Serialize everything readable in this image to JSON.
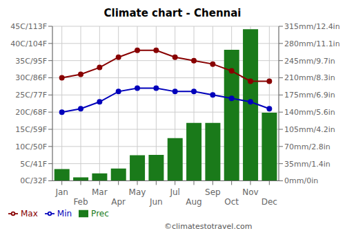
{
  "chart_data": {
    "type": "bar",
    "title": "Climate chart - Chennai",
    "categories": [
      "Jan",
      "Feb",
      "Mar",
      "Apr",
      "May",
      "Jun",
      "Jul",
      "Aug",
      "Sep",
      "Oct",
      "Nov",
      "Dec"
    ],
    "series": [
      {
        "name": "Prec",
        "type": "bar",
        "color": "#1a7a1a",
        "axis": "y2",
        "values": [
          24,
          7,
          15,
          25,
          52,
          53,
          87,
          118,
          118,
          267,
          309,
          139
        ]
      },
      {
        "name": "Min",
        "type": "line",
        "color": "#0000bb",
        "marker": "o",
        "values": [
          20,
          21,
          23,
          26,
          27,
          27,
          26,
          26,
          25,
          24,
          23,
          21
        ]
      },
      {
        "name": "Max",
        "type": "line",
        "color": "#880000",
        "marker": "o",
        "values": [
          30,
          31,
          33,
          36,
          38,
          38,
          36,
          35,
          34,
          32,
          29,
          29
        ]
      }
    ],
    "ylim": [
      0,
      45
    ],
    "yticks": [
      {
        "value": 0,
        "label": "0C/32F"
      },
      {
        "value": 5,
        "label": "5C/41F"
      },
      {
        "value": 10,
        "label": "10C/50F"
      },
      {
        "value": 15,
        "label": "15C/59F"
      },
      {
        "value": 20,
        "label": "20C/68F"
      },
      {
        "value": 25,
        "label": "25C/77F"
      },
      {
        "value": 30,
        "label": "30C/86F"
      },
      {
        "value": 35,
        "label": "35C/95F"
      },
      {
        "value": 40,
        "label": "40C/104F"
      },
      {
        "value": 45,
        "label": "45C/113F"
      }
    ],
    "y2lim": [
      0,
      315
    ],
    "y2ticks": [
      {
        "value": 0,
        "label": "0mm/0in"
      },
      {
        "value": 35,
        "label": "35mm/1.4in"
      },
      {
        "value": 70,
        "label": "70mm/2.8in"
      },
      {
        "value": 105,
        "label": "105mm/4.2in"
      },
      {
        "value": 140,
        "label": "140mm/5.6in"
      },
      {
        "value": 175,
        "label": "175mm/6.9in"
      },
      {
        "value": 210,
        "label": "210mm/8.3in"
      },
      {
        "value": 245,
        "label": "245mm/9.7in"
      },
      {
        "value": 280,
        "label": "280mm/11.1in"
      },
      {
        "value": 315,
        "label": "315mm/12.4in"
      }
    ],
    "grid": true,
    "legend": "lower left",
    "annotations": [
      "©climatestotravel.com"
    ]
  }
}
